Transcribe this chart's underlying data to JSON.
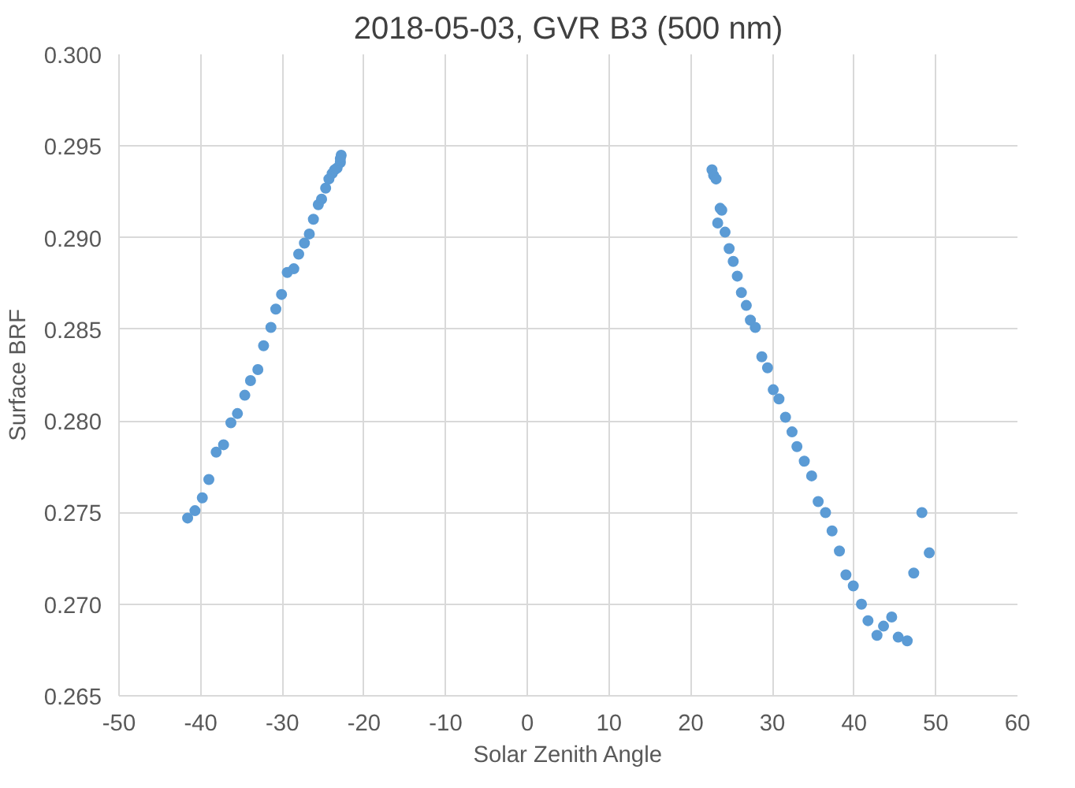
{
  "chart_data": {
    "type": "scatter",
    "title": "2018-05-03, GVR B3 (500 nm)",
    "xlabel": "Solar Zenith Angle",
    "ylabel": "Surface BRF",
    "xlim": [
      -50,
      60
    ],
    "xticks": [
      -50,
      -40,
      -30,
      -20,
      -10,
      0,
      10,
      20,
      30,
      40,
      50,
      60
    ],
    "ylim": [
      0.265,
      0.3
    ],
    "yticks": [
      {
        "value": 0.265,
        "label": "0.265"
      },
      {
        "value": 0.27,
        "label": "0.270"
      },
      {
        "value": 0.275,
        "label": "0.275"
      },
      {
        "value": 0.28,
        "label": "0.280"
      },
      {
        "value": 0.285,
        "label": "0.285"
      },
      {
        "value": 0.29,
        "label": "0.290"
      },
      {
        "value": 0.295,
        "label": "0.295"
      },
      {
        "value": 0.3,
        "label": "0.300"
      }
    ],
    "grid": true,
    "marker": "circle",
    "series": [
      {
        "color": "#5b9bd5",
        "x": [
          -41.6,
          -40.7,
          -39.8,
          -39.0,
          -38.1,
          -37.2,
          -36.3,
          -35.5,
          -34.6,
          -33.9,
          -33.0,
          -32.3,
          -31.4,
          -30.8,
          -30.1,
          -29.4,
          -28.6,
          -28.0,
          -27.3,
          -26.7,
          -26.2,
          -25.6,
          -25.2,
          -24.7,
          -24.3,
          -23.9,
          -23.6,
          -23.3,
          -22.9,
          -22.8,
          -22.9,
          22.6,
          22.8,
          23.1,
          23.6,
          23.8,
          23.3,
          24.2,
          24.7,
          25.2,
          25.7,
          26.2,
          26.8,
          27.3,
          27.9,
          28.7,
          29.4,
          30.1,
          30.8,
          31.6,
          32.4,
          33.0,
          33.9,
          34.8,
          35.6,
          36.5,
          37.3,
          38.2,
          39.0,
          39.9,
          40.9,
          41.7,
          42.8,
          43.6,
          44.6,
          45.4,
          46.5,
          47.3,
          48.3,
          49.2
        ],
        "values": [
          0.2747,
          0.2751,
          0.2758,
          0.2768,
          0.2783,
          0.2787,
          0.2799,
          0.2804,
          0.2814,
          0.2822,
          0.2828,
          0.2841,
          0.2851,
          0.2861,
          0.2869,
          0.2881,
          0.2883,
          0.2891,
          0.2897,
          0.2902,
          0.291,
          0.2918,
          0.2921,
          0.2927,
          0.2932,
          0.2935,
          0.2937,
          0.2938,
          0.2941,
          0.2945,
          0.2943,
          0.2937,
          0.2934,
          0.2932,
          0.2916,
          0.2915,
          0.2908,
          0.2903,
          0.2894,
          0.2887,
          0.2879,
          0.287,
          0.2863,
          0.2855,
          0.2851,
          0.2835,
          0.2829,
          0.2817,
          0.2812,
          0.2802,
          0.2794,
          0.2786,
          0.2778,
          0.277,
          0.2756,
          0.275,
          0.274,
          0.2729,
          0.2716,
          0.271,
          0.27,
          0.2691,
          0.2683,
          0.2688,
          0.2693,
          0.2682,
          0.268,
          0.2717,
          0.275,
          0.2728
        ]
      }
    ]
  }
}
